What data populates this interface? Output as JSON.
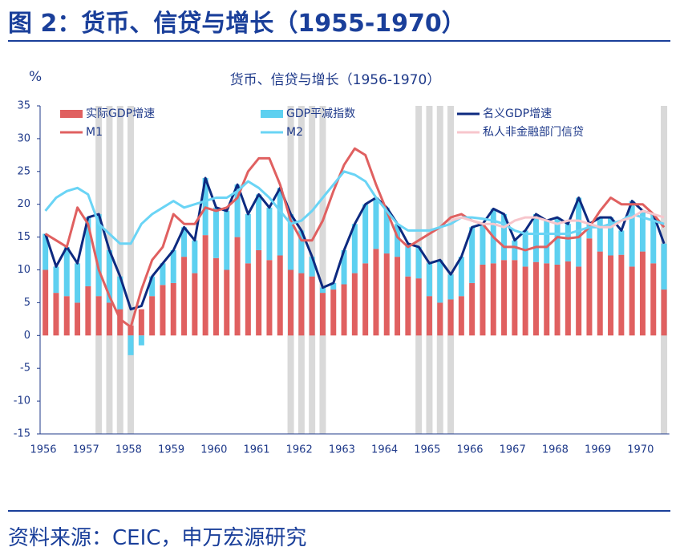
{
  "header": {
    "title": "图 2：货币、信贷与增长（1955-1970）"
  },
  "chart_data": {
    "type": "bar-line",
    "title": "货币、信贷与增长（1956-1970）",
    "y_label": "%",
    "categories": [
      "1956",
      null,
      null,
      null,
      "1957",
      null,
      null,
      null,
      "1958",
      null,
      null,
      null,
      "1959",
      null,
      null,
      null,
      "1960",
      null,
      null,
      null,
      "1961",
      null,
      null,
      null,
      "1962",
      null,
      null,
      null,
      "1963",
      null,
      null,
      null,
      "1964",
      null,
      null,
      null,
      "1965",
      null,
      null,
      null,
      "1966",
      null,
      null,
      null,
      "1967",
      null,
      null,
      null,
      "1968",
      null,
      null,
      null,
      "1969",
      null,
      null,
      null,
      "1970",
      null,
      null
    ],
    "ylim": [
      -15,
      35
    ],
    "yticks": [
      -15,
      -10,
      -5,
      0,
      5,
      10,
      15,
      20,
      25,
      30,
      35
    ],
    "shaded": [
      5,
      6,
      7,
      8,
      23,
      24,
      25,
      26,
      35,
      36,
      37,
      38,
      58
    ],
    "shade_color": "#d9d9d9",
    "series": [
      {
        "name": "实际GDP增速",
        "kind": "bar",
        "color": "#e06060",
        "values": [
          10,
          6.5,
          6,
          5,
          7.5,
          6,
          5,
          4,
          1.5,
          4,
          6,
          7.7,
          8,
          12,
          9.5,
          15.3,
          11.8,
          10,
          15,
          11,
          13,
          11.5,
          12.2,
          10,
          9.5,
          9,
          6.5,
          7,
          7.8,
          9.5,
          11,
          13.2,
          12.5,
          12,
          9,
          8.7,
          6,
          5,
          5.5,
          6,
          8,
          10.8,
          11,
          11.5,
          11.5,
          10.5,
          11.2,
          11,
          10.8,
          11.3,
          10.5,
          14.8,
          12.8,
          12.2,
          12.3,
          10.5,
          12.8,
          11,
          7
        ]
      },
      {
        "name": "GDP平减指数",
        "kind": "stack",
        "color": "#5dd0f0",
        "values": [
          5.5,
          4,
          7.5,
          6,
          10.5,
          12.5,
          8,
          5,
          -3,
          -1.5,
          3,
          3.3,
          5,
          4.5,
          5,
          8.7,
          7.7,
          9,
          8,
          7.5,
          8.5,
          8,
          10.3,
          8.5,
          6.5,
          3,
          0.8,
          1,
          5.2,
          7.5,
          9,
          7.8,
          7,
          5,
          5,
          4.8,
          5,
          6.5,
          3.8,
          6,
          8.5,
          6.2,
          8.3,
          7,
          3,
          5.5,
          7.3,
          6.5,
          7.2,
          5.7,
          10.5,
          2.2,
          5.2,
          5.8,
          3.7,
          10,
          6.2,
          7.5,
          7
        ]
      },
      {
        "name": "名义GDP增速",
        "kind": "line",
        "color": "#0d2a80",
        "values": [
          15.5,
          10.5,
          13.5,
          11,
          18,
          18.5,
          13,
          9,
          4,
          4.5,
          9,
          11,
          13,
          16.5,
          14.5,
          24,
          19.5,
          19,
          23,
          18.5,
          21.5,
          19.5,
          22.5,
          18.5,
          16,
          12,
          7.3,
          8,
          13,
          17,
          20,
          21,
          19.5,
          17,
          14,
          13.5,
          11,
          11.5,
          9.3,
          12,
          16.5,
          17,
          19.3,
          18.5,
          14.5,
          16,
          18.5,
          17.5,
          18,
          17,
          21,
          17,
          18,
          18,
          16,
          20.5,
          19,
          18.5,
          14
        ]
      },
      {
        "name": "M1",
        "kind": "line",
        "color": "#e06060",
        "values": [
          15.5,
          14.5,
          13.5,
          19.5,
          17,
          10,
          6,
          2.5,
          1.3,
          7,
          11.5,
          13.5,
          18.5,
          17,
          17,
          19.5,
          19,
          19.5,
          21,
          25,
          27,
          27,
          23,
          17.5,
          14.5,
          14.5,
          17.5,
          22,
          26,
          28.5,
          27.5,
          23,
          19,
          15,
          13.5,
          14.5,
          15.5,
          16.5,
          18,
          18.5,
          17.5,
          17,
          15,
          13.5,
          13.5,
          13,
          13.5,
          13.5,
          15,
          14.8,
          15,
          16.5,
          19,
          21,
          20,
          20,
          20,
          18.5,
          16.5
        ]
      },
      {
        "name": "M2",
        "kind": "line",
        "color": "#6ad4f5",
        "values": [
          19,
          21,
          22,
          22.5,
          21.5,
          17,
          15.5,
          14,
          14,
          17,
          18.5,
          19.5,
          20.5,
          19.5,
          20,
          20.5,
          21,
          21,
          22,
          23.5,
          22.5,
          21,
          19,
          17,
          17.5,
          19,
          21,
          23,
          25,
          24.5,
          23.5,
          21,
          19,
          17,
          16,
          16,
          16,
          16.5,
          17,
          18,
          18,
          17.8,
          17.5,
          17,
          16,
          15.5,
          15.5,
          15.5,
          15.5,
          15.5,
          16,
          16.5,
          16.5,
          17,
          17.5,
          18.5,
          18,
          17.5,
          17
        ]
      },
      {
        "name": "私人非金融部门信贷",
        "kind": "line",
        "color": "#f7c6cc",
        "values": [
          null,
          null,
          null,
          null,
          null,
          null,
          null,
          null,
          null,
          null,
          null,
          null,
          null,
          null,
          null,
          null,
          null,
          null,
          null,
          null,
          null,
          null,
          null,
          null,
          null,
          null,
          null,
          null,
          null,
          null,
          null,
          null,
          null,
          null,
          null,
          null,
          null,
          null,
          17.5,
          18,
          17.5,
          17,
          17,
          16.5,
          17.5,
          18,
          18,
          17.5,
          17,
          17.5,
          17.5,
          17,
          16.5,
          16.5,
          17.5,
          18,
          19,
          18.5,
          18
        ]
      }
    ]
  },
  "footer": {
    "source": "资料来源：CEIC，申万宏源研究"
  }
}
